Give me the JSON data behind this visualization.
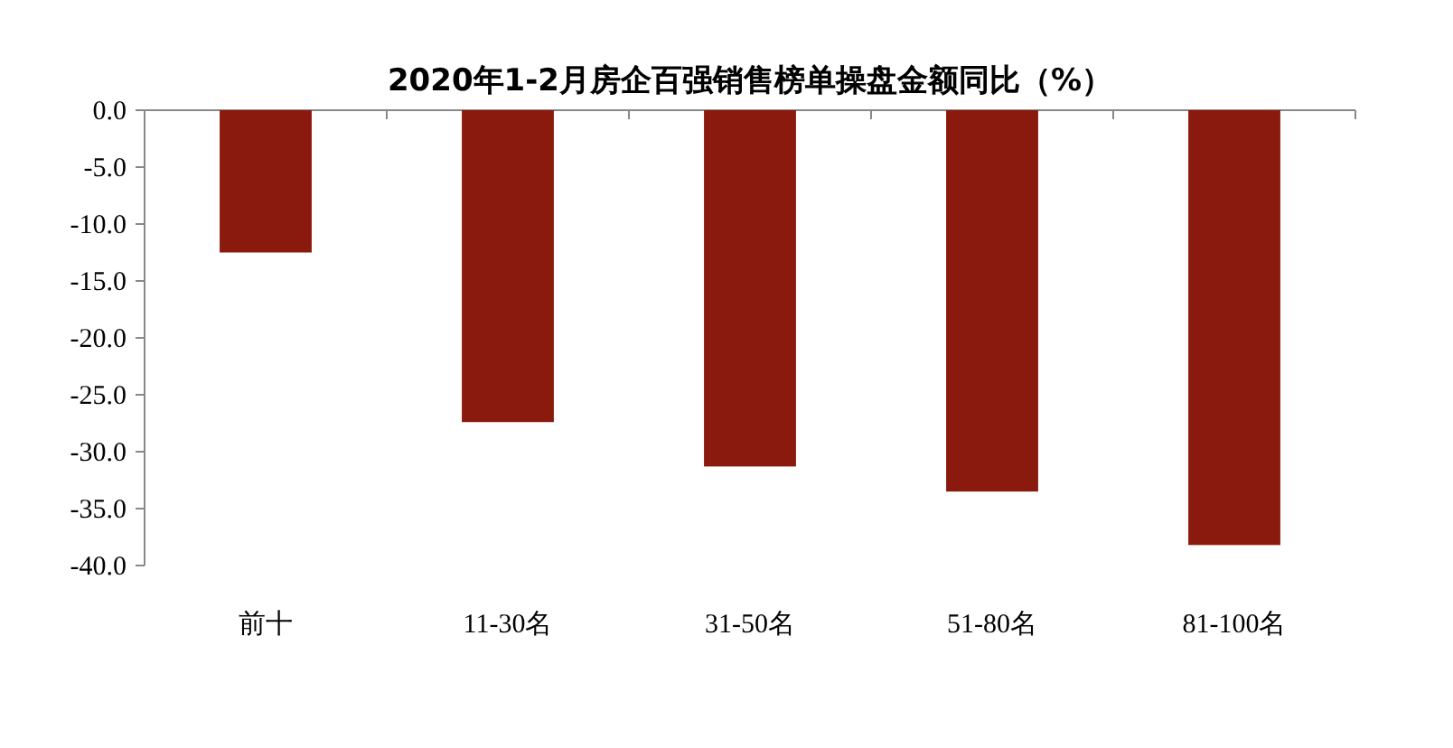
{
  "chart_data": {
    "type": "bar",
    "title": "2020年1-2月房企百强销售榜单操盘金额同比（%）",
    "categories": [
      "前十",
      "11-30名",
      "31-50名",
      "51-80名",
      "81-100名"
    ],
    "values": [
      -12.5,
      -27.4,
      -31.3,
      -33.5,
      -38.2
    ],
    "color": "#8b1a0e",
    "ylim": [
      -40,
      0
    ],
    "yticks": [
      {
        "value": 0,
        "label": "0.0"
      },
      {
        "value": -5,
        "label": "-5.0"
      },
      {
        "value": -10,
        "label": "-10.0"
      },
      {
        "value": -15,
        "label": "-15.0"
      },
      {
        "value": -20,
        "label": "-20.0"
      },
      {
        "value": -25,
        "label": "-25.0"
      },
      {
        "value": -30,
        "label": "-30.0"
      },
      {
        "value": -35,
        "label": "-35.0"
      },
      {
        "value": -40,
        "label": "-40.0"
      }
    ],
    "grid": false
  }
}
